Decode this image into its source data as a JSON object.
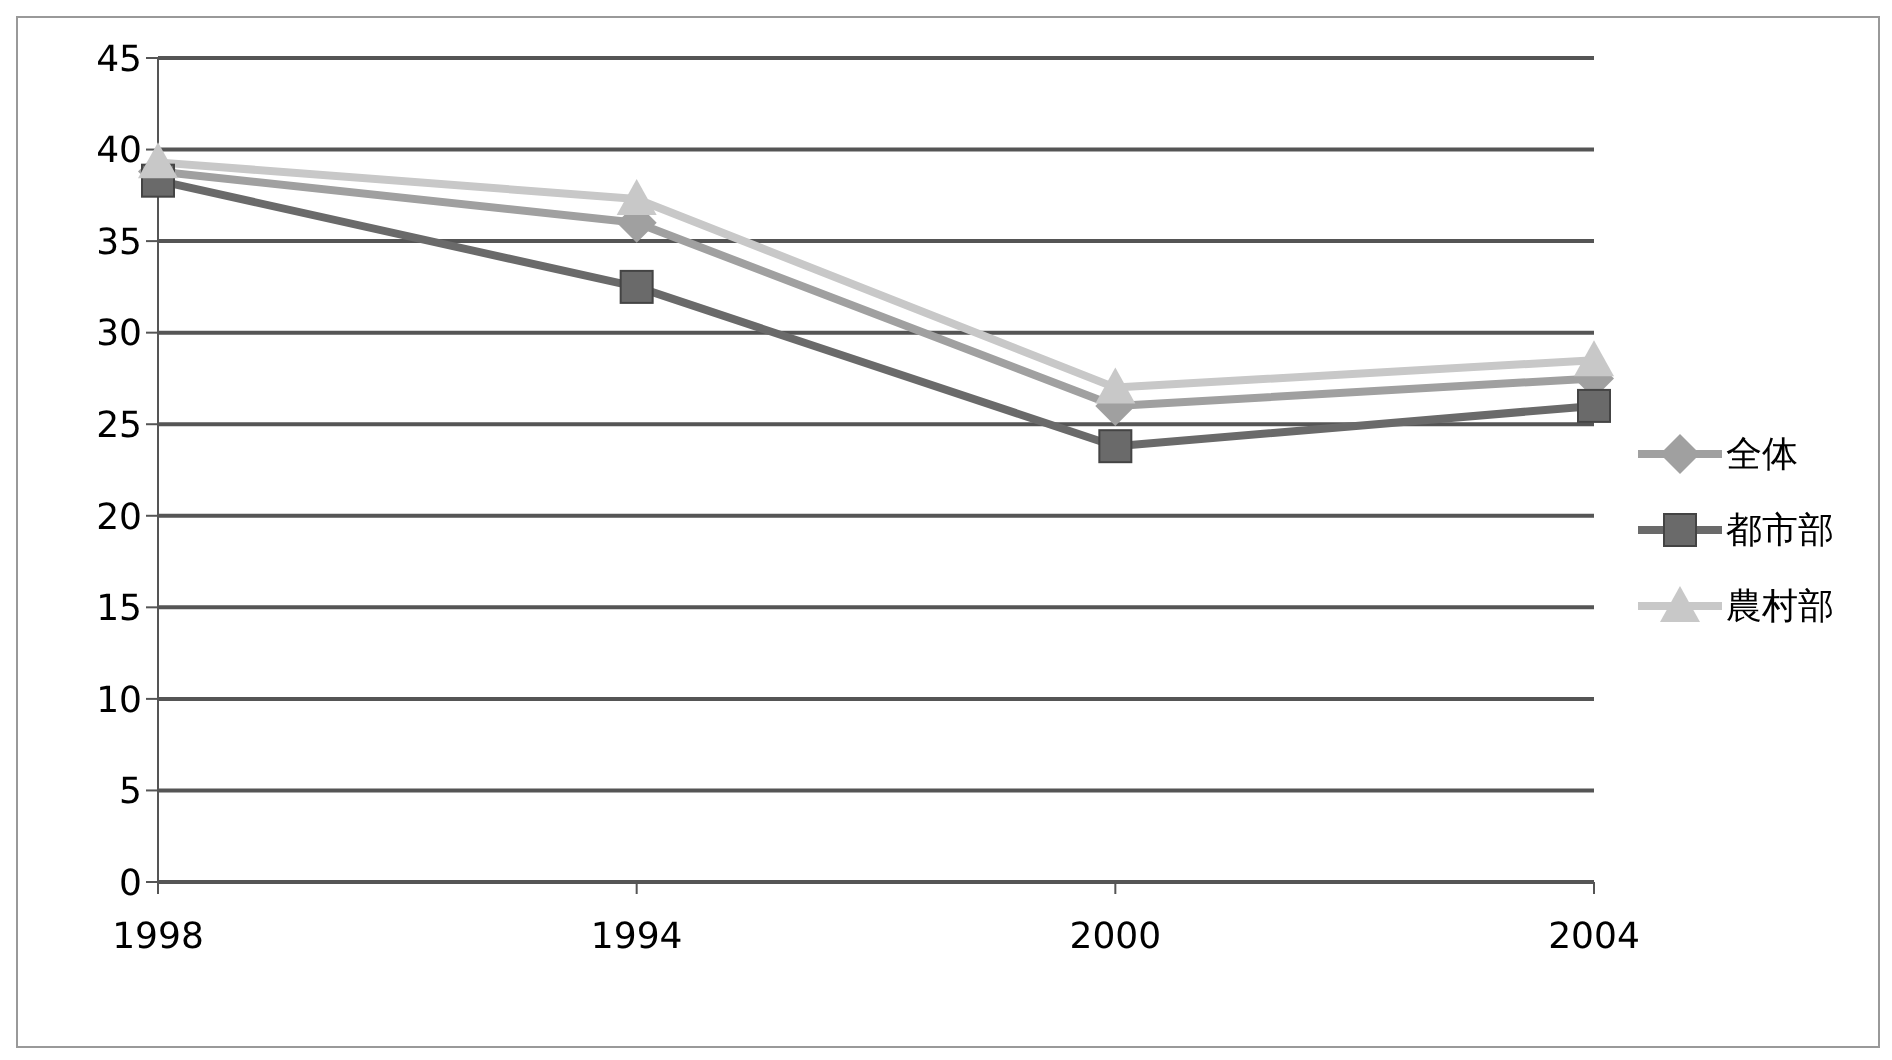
{
  "chart_data": {
    "type": "line",
    "categories": [
      "1998",
      "1994",
      "2000",
      "2004"
    ],
    "series": [
      {
        "name": "全体",
        "color": "#a0a0a0",
        "marker": "diamond",
        "values": [
          38.8,
          36,
          26,
          27.5
        ]
      },
      {
        "name": "都市部",
        "color": "#6a6a6a",
        "marker": "square",
        "values": [
          38.3,
          32.5,
          23.8,
          26
        ]
      },
      {
        "name": "農村部",
        "color": "#c8c8c8",
        "marker": "triangle",
        "values": [
          39.3,
          37.3,
          27,
          28.5
        ]
      }
    ],
    "ylim": [
      0,
      45
    ],
    "yticks": [
      0,
      5,
      10,
      15,
      20,
      25,
      30,
      35,
      40,
      45
    ],
    "grid": "y",
    "legend": "right"
  }
}
